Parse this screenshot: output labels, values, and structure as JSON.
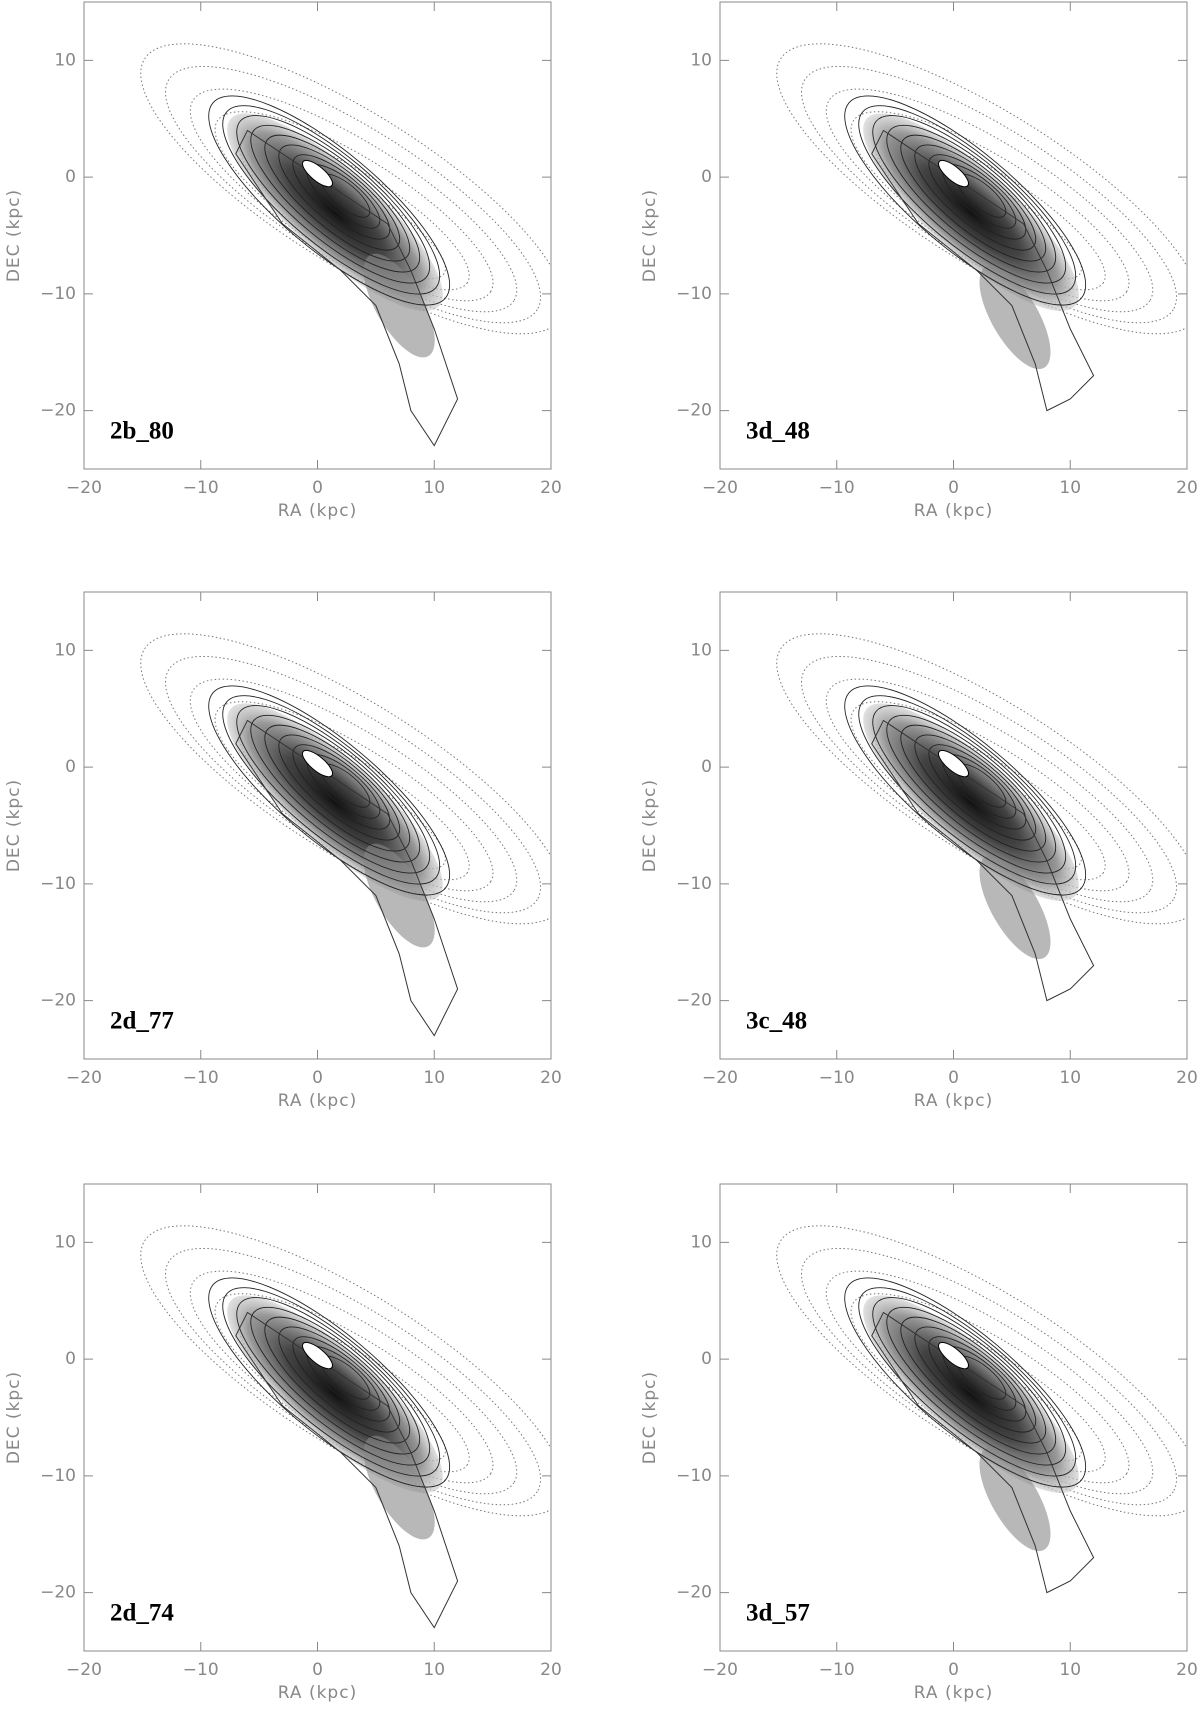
{
  "chart_data": [
    {
      "type": "contour",
      "label": "2b_80",
      "xlabel": "RA (kpc)",
      "ylabel": "DEC (kpc)",
      "xlim": [
        -20,
        20
      ],
      "ylim": [
        -25,
        15
      ],
      "xticks": [
        {
          "value": -20,
          "label": "−20"
        },
        {
          "value": -10,
          "label": "−10"
        },
        0,
        10,
        20
      ],
      "yticks": [
        {
          "value": -20,
          "label": "−20"
        },
        {
          "value": -10,
          "label": "−10"
        },
        0,
        10
      ]
    },
    {
      "type": "contour",
      "label": "3d_48",
      "xlabel": "RA (kpc)",
      "ylabel": "DEC (kpc)",
      "xlim": [
        -20,
        20
      ],
      "ylim": [
        -25,
        15
      ],
      "xticks": [
        {
          "value": -20,
          "label": "−20"
        },
        {
          "value": -10,
          "label": "−10"
        },
        0,
        10,
        20
      ],
      "yticks": [
        {
          "value": -20,
          "label": "−20"
        },
        {
          "value": -10,
          "label": "−10"
        },
        0,
        10
      ]
    },
    {
      "type": "contour",
      "label": "2d_77",
      "xlabel": "RA (kpc)",
      "ylabel": "DEC (kpc)",
      "xlim": [
        -20,
        20
      ],
      "ylim": [
        -25,
        15
      ],
      "xticks": [
        {
          "value": -20,
          "label": "−20"
        },
        {
          "value": -10,
          "label": "−10"
        },
        0,
        10,
        20
      ],
      "yticks": [
        {
          "value": -20,
          "label": "−20"
        },
        {
          "value": -10,
          "label": "−10"
        },
        0,
        10
      ]
    },
    {
      "type": "contour",
      "label": "3c_48",
      "xlabel": "RA (kpc)",
      "ylabel": "DEC (kpc)",
      "xlim": [
        -20,
        20
      ],
      "ylim": [
        -25,
        15
      ],
      "xticks": [
        {
          "value": -20,
          "label": "−20"
        },
        {
          "value": -10,
          "label": "−10"
        },
        0,
        10,
        20
      ],
      "yticks": [
        {
          "value": -20,
          "label": "−20"
        },
        {
          "value": -10,
          "label": "−10"
        },
        0,
        10
      ]
    },
    {
      "type": "contour",
      "label": "2d_74",
      "xlabel": "RA (kpc)",
      "ylabel": "DEC (kpc)",
      "xlim": [
        -20,
        20
      ],
      "ylim": [
        -25,
        15
      ],
      "xticks": [
        {
          "value": -20,
          "label": "−20"
        },
        {
          "value": -10,
          "label": "−10"
        },
        0,
        10,
        20
      ],
      "yticks": [
        {
          "value": -20,
          "label": "−20"
        },
        {
          "value": -10,
          "label": "−10"
        },
        0,
        10
      ]
    },
    {
      "type": "contour",
      "label": "3d_57",
      "xlabel": "RA (kpc)",
      "ylabel": "DEC (kpc)",
      "xlim": [
        -20,
        20
      ],
      "ylim": [
        -25,
        15
      ],
      "xticks": [
        {
          "value": -20,
          "label": "−20"
        },
        {
          "value": -10,
          "label": "−10"
        },
        0,
        10,
        20
      ],
      "yticks": [
        {
          "value": -20,
          "label": "−20"
        },
        {
          "value": -10,
          "label": "−10"
        },
        0,
        10
      ]
    }
  ]
}
